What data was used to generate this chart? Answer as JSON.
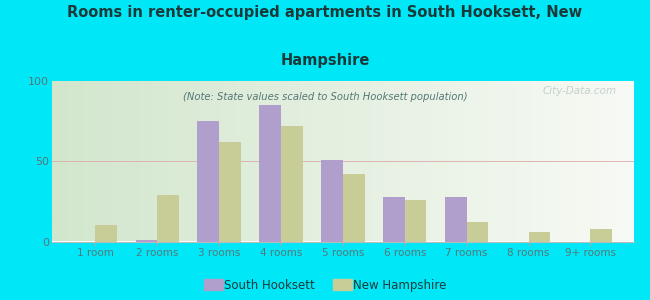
{
  "title_line1": "Rooms in renter-occupied apartments in South Hooksett, New",
  "title_line2": "Hampshire",
  "subtitle": "(Note: State values scaled to South Hooksett population)",
  "categories": [
    "1 room",
    "2 rooms",
    "3 rooms",
    "4 rooms",
    "5 rooms",
    "6 rooms",
    "7 rooms",
    "8 rooms",
    "9+ rooms"
  ],
  "south_hooksett": [
    0,
    1,
    75,
    85,
    51,
    28,
    28,
    0,
    0
  ],
  "new_hampshire": [
    10,
    29,
    62,
    72,
    42,
    26,
    12,
    6,
    8
  ],
  "sh_color": "#b09fcc",
  "nh_color": "#c8cc96",
  "background_outer": "#00e8f8",
  "ylim": [
    0,
    100
  ],
  "yticks": [
    0,
    50,
    100
  ],
  "bar_width": 0.35,
  "legend_labels": [
    "South Hooksett",
    "New Hampshire"
  ],
  "watermark": "City-Data.com",
  "title_color": "#1a3a3a",
  "subtitle_color": "#557777",
  "tick_color": "#557777",
  "grid_color": "#dddddd"
}
